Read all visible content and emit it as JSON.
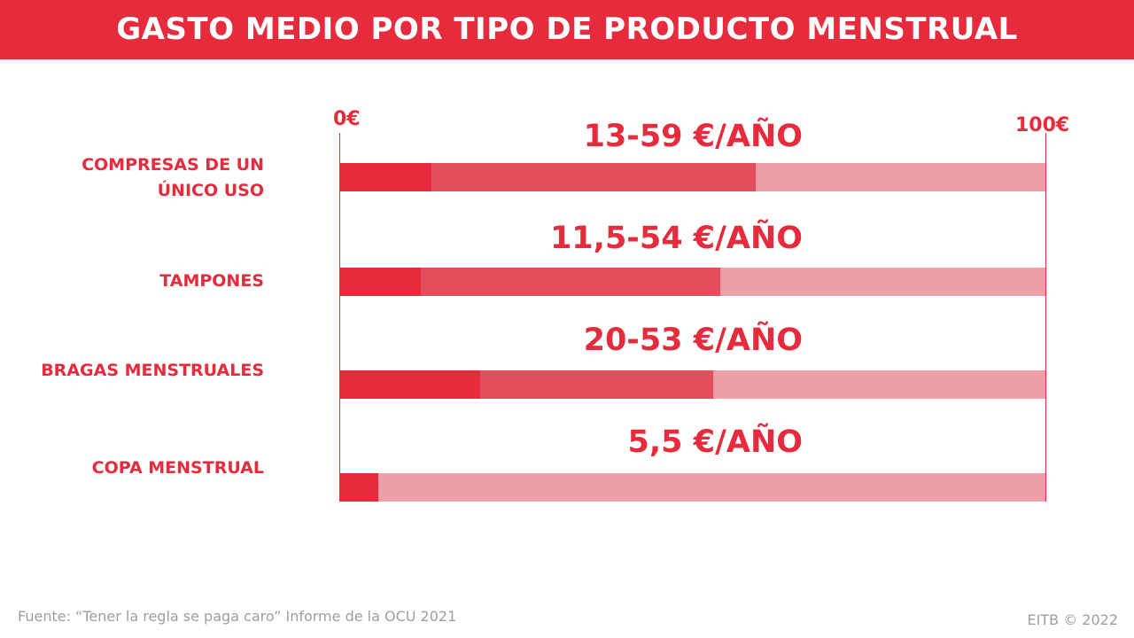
{
  "header": {
    "title": "GASTO MEDIO POR TIPO DE PRODUCTO MENSTRUAL"
  },
  "colors": {
    "accent": "#e52b3c",
    "mid": "#e44d5c",
    "light": "#eca0a5"
  },
  "chart_data": {
    "type": "bar",
    "xlim": [
      0,
      100
    ],
    "axis_min_label": "0€",
    "axis_max_label": "100€",
    "rows": [
      {
        "label": "COMPRESAS DE UN ÚNICO USO",
        "min": 13,
        "max": 59,
        "range_label": "13-59 €/AÑO"
      },
      {
        "label": "TAMPONES",
        "min": 11.5,
        "max": 54,
        "range_label": "11,5-54 €/AÑO"
      },
      {
        "label": "BRAGAS MENSTRUALES",
        "min": 20,
        "max": 53,
        "range_label": "20-53 €/AÑO"
      },
      {
        "label": "COPA MENSTRUAL",
        "min": 5.5,
        "max": 5.5,
        "range_label": "5,5 €/AÑO"
      }
    ]
  },
  "footer": {
    "source": "Fuente: “Tener la regla se paga caro” Informe de la OCU 2021",
    "credit": "EITB © 2022"
  }
}
